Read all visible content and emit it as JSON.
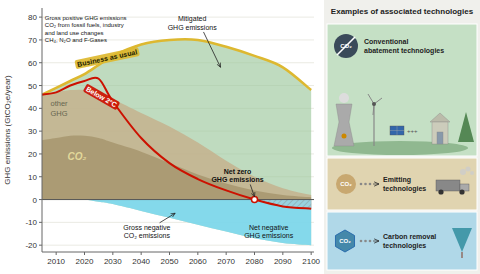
{
  "chart_data": {
    "type": "area",
    "x": [
      2005,
      2010,
      2015,
      2020,
      2025,
      2030,
      2040,
      2050,
      2060,
      2070,
      2080,
      2090,
      2100
    ],
    "series": [
      {
        "type": "line",
        "color": "#ddb830",
        "values": [
          46,
          49,
          52,
          55,
          59,
          63,
          68,
          70,
          70,
          67,
          63,
          58,
          48
        ]
      },
      {
        "type": "area",
        "color": "#c4b490",
        "values": [
          46,
          47,
          48,
          48,
          46,
          44,
          38,
          32,
          25,
          17,
          10,
          5,
          2
        ]
      },
      {
        "type": "area",
        "color": "#a89870",
        "values": [
          26,
          27,
          28,
          28,
          27,
          25,
          21,
          16,
          11,
          7,
          4,
          2,
          1
        ]
      },
      {
        "type": "area",
        "color": "#7dd8f0",
        "values": [
          0,
          0,
          0,
          0,
          -1,
          -2,
          -5,
          -8,
          -11,
          -14,
          -17,
          -19,
          -20
        ]
      },
      {
        "type": "line",
        "color": "#cc1100",
        "values": [
          46,
          47,
          50,
          52,
          53,
          43,
          27,
          16,
          9,
          4,
          0,
          -3,
          -4
        ]
      }
    ],
    "ylabel": "GHG emissions (GtCO₂e/year)",
    "xlim": [
      2005,
      2101
    ],
    "ylim": [
      -23,
      84
    ],
    "xticks": [
      2010,
      2020,
      2030,
      2040,
      2050,
      2060,
      2070,
      2080,
      2090,
      2100
    ],
    "yticks": [
      -20,
      -10,
      0,
      10,
      20,
      30,
      40,
      50,
      60,
      70,
      80
    ],
    "grid": true,
    "annotations": [
      "Business as usual",
      "Below 2°C",
      "Gross positive GHG emissions\nCO₂ from fossil fuels, industry\nand land use changes\nCH₄, N₂O and F-Gases",
      "other\nGHG",
      "CO₂",
      "Mitigated\nGHG emissions",
      "Gross negative\nCO₂ emissions",
      "Net zero\nGHG emissions",
      "Net negative\nGHG emissions"
    ],
    "panel": {
      "title": "Examples of associated technologies",
      "sections": [
        {
          "label": "Conventional\nabatement technologies",
          "color": "#c5e0c5",
          "icon_labels": [
            "CO₂",
            "+++"
          ]
        },
        {
          "label": "Emitting\ntechnologies",
          "color": "#e0d4b0",
          "icon_labels": [
            "CO₂"
          ]
        },
        {
          "label": "Carbon removal\ntechnologies",
          "color": "#b0d8e8",
          "icon_labels": [
            "CO₂"
          ]
        }
      ]
    }
  }
}
